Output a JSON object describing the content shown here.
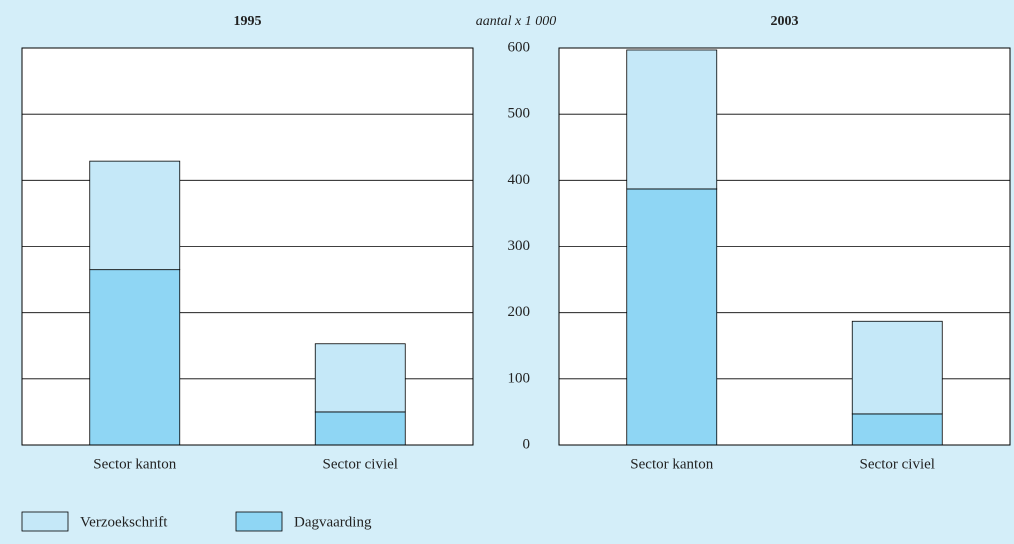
{
  "chart_data": [
    {
      "type": "stacked_bar",
      "title": "1995",
      "categories": [
        "Sector kanton",
        "Sector civiel"
      ],
      "series": [
        {
          "name": "Dagvaarding",
          "color": "#8fd6f4",
          "values": [
            265,
            50
          ]
        },
        {
          "name": "Verzoekschrift",
          "color": "#c5e8f8",
          "values": [
            164,
            103
          ]
        }
      ],
      "ylim": [
        0,
        600
      ],
      "yticks": [
        0,
        100,
        200,
        300,
        400,
        500,
        600
      ],
      "grid": true
    },
    {
      "type": "stacked_bar",
      "title": "2003",
      "y_label": "aantal x 1 000",
      "categories": [
        "Sector kanton",
        "Sector civiel"
      ],
      "series": [
        {
          "name": "Dagvaarding",
          "color": "#8fd6f4",
          "values": [
            387,
            47
          ]
        },
        {
          "name": "Verzoekschrift",
          "color": "#c5e8f8",
          "values": [
            210,
            140
          ]
        }
      ],
      "ylim": [
        0,
        600
      ],
      "yticks": [
        0,
        100,
        200,
        300,
        400,
        500,
        600
      ],
      "grid": true
    }
  ]
}
